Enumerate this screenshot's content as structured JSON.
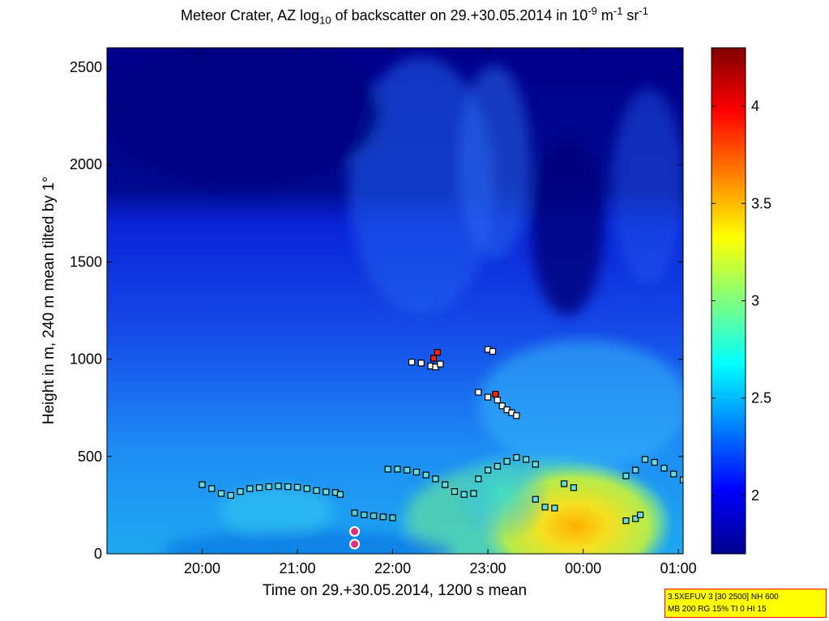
{
  "chart_data": {
    "type": "heatmap",
    "title": {
      "prefix": "Meteor Crater, AZ log",
      "sub1": "10",
      "middle": " of backscatter on 29.+30.05.2014 in 10",
      "sup1": "-9",
      "unit_m": " m",
      "sup2": "-1",
      "unit_sr": " sr",
      "sup3": "-1"
    },
    "xlabel": "Time on 29.+30.05.2014, 1200 s mean",
    "ylabel": "Height in m, 240 m mean tilted by 1°",
    "x_ticks": [
      "20:00",
      "21:00",
      "22:00",
      "23:00",
      "00:00",
      "01:00"
    ],
    "x_tick_hours": [
      20,
      21,
      22,
      23,
      24,
      25
    ],
    "xlim_hours": [
      19.0,
      25.05
    ],
    "y_ticks": [
      0,
      500,
      1000,
      1500,
      2000,
      2500
    ],
    "ylim": [
      0,
      2600
    ],
    "colorbar": {
      "ticks": [
        "2",
        "2.5",
        "3",
        "3.5",
        "4"
      ],
      "tick_values": [
        2,
        2.5,
        3,
        3.5,
        4
      ],
      "range": [
        1.7,
        4.3
      ],
      "colormap": "jet"
    },
    "series": [
      {
        "marker": "square",
        "color": "#66dddd",
        "x": [
          20.0,
          20.1,
          20.2,
          20.3,
          20.4,
          20.5,
          20.6,
          20.7,
          20.8,
          20.9,
          21.0,
          21.1,
          21.2,
          21.3,
          21.4,
          21.45
        ],
        "y": [
          355,
          335,
          310,
          300,
          320,
          335,
          340,
          345,
          348,
          345,
          342,
          335,
          325,
          318,
          315,
          305
        ]
      },
      {
        "marker": "square",
        "color": "#55cccc",
        "x": [
          21.6,
          21.7,
          21.8,
          21.9,
          22.0
        ],
        "y": [
          210,
          200,
          195,
          190,
          185
        ]
      },
      {
        "marker": "square",
        "color": "#66dddd",
        "x": [
          21.95,
          22.05,
          22.15,
          22.25,
          22.35,
          22.45,
          22.55,
          22.65,
          22.75,
          22.85,
          22.9,
          23.0,
          23.1,
          23.2,
          23.3,
          23.4,
          23.5
        ],
        "y": [
          435,
          435,
          430,
          420,
          405,
          385,
          355,
          320,
          305,
          310,
          385,
          430,
          450,
          475,
          495,
          485,
          460
        ]
      },
      {
        "marker": "square",
        "color": "#66dddd",
        "x": [
          23.5,
          23.6,
          23.7,
          23.8,
          23.9
        ],
        "y": [
          280,
          240,
          235,
          360,
          340
        ]
      },
      {
        "marker": "square",
        "color": "#66dddd",
        "x": [
          24.45,
          24.55,
          24.6
        ],
        "y": [
          170,
          180,
          200
        ]
      },
      {
        "marker": "square",
        "color": "#66dddd",
        "x": [
          24.45,
          24.55,
          24.65,
          24.75,
          24.85,
          24.95,
          25.05
        ],
        "y": [
          400,
          430,
          485,
          470,
          440,
          410,
          380
        ]
      },
      {
        "marker": "square",
        "color": "#ffffff",
        "x": [
          22.2,
          22.3,
          22.4,
          22.45,
          22.5,
          22.9,
          23.0,
          23.1,
          23.15,
          23.2,
          23.25,
          23.3
        ],
        "y": [
          985,
          980,
          965,
          960,
          975,
          830,
          805,
          790,
          760,
          740,
          725,
          710
        ]
      },
      {
        "marker": "square",
        "color": "#ff2200",
        "x": [
          22.43,
          22.47,
          23.08
        ],
        "y": [
          1005,
          1035,
          820
        ]
      },
      {
        "marker": "square",
        "color": "#ffffff",
        "x": [
          23.0,
          23.05
        ],
        "y": [
          1050,
          1040
        ]
      },
      {
        "marker": "circle",
        "color": "#dd3377",
        "x": [
          21.6,
          21.6
        ],
        "y": [
          115,
          50
        ]
      }
    ]
  },
  "info_box": {
    "line1": "3.5XEFUV 3 [30 2500] NH 600",
    "line2": "MB 200 RG 15% TI 0 HI 15"
  }
}
